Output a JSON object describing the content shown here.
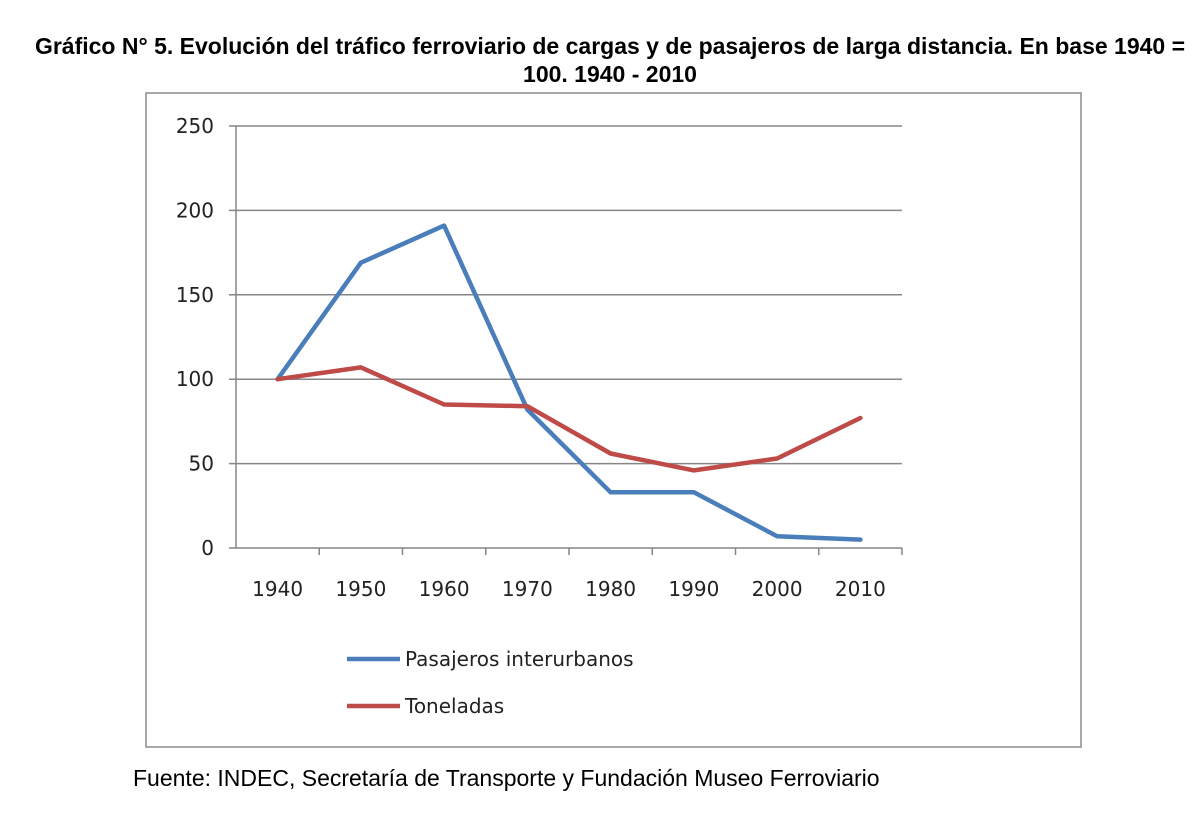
{
  "title": "Gráfico N° 5. Evolución del tráfico ferroviario de cargas y de pasajeros de larga distancia. En base 1940 = 100. 1940 - 2010",
  "source": "Fuente: INDEC, Secretaría de Transporte y Fundación Museo Ferroviario",
  "chart_data": {
    "type": "line",
    "title": "Gráfico N° 5. Evolución del tráfico ferroviario de cargas y de pasajeros de larga distancia. En base 1940 = 100. 1940 - 2010",
    "xlabel": "",
    "ylabel": "",
    "categories": [
      "1940",
      "1950",
      "1960",
      "1970",
      "1980",
      "1990",
      "2000",
      "2010"
    ],
    "ylim": [
      0,
      250
    ],
    "yticks": [
      0,
      50,
      100,
      150,
      200,
      250
    ],
    "ytick_labels": [
      "0",
      "50",
      "100",
      "150",
      "200",
      "250"
    ],
    "grid": true,
    "legend_position": "bottom-left",
    "series": [
      {
        "name": "Pasajeros interurbanos",
        "color": "#4a7ebb",
        "values": [
          100,
          169,
          191,
          82,
          33,
          33,
          7,
          5
        ]
      },
      {
        "name": "Toneladas",
        "color": "#be4b48",
        "values": [
          100,
          107,
          85,
          84,
          56,
          46,
          53,
          77
        ]
      }
    ]
  }
}
